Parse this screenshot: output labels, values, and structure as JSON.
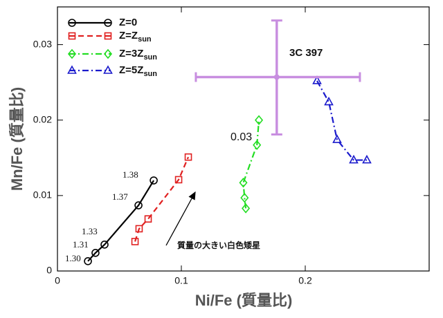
{
  "chart_data": {
    "type": "line",
    "x_label": "Ni/Fe (質量比)",
    "y_label": "Mn/Fe (質量比)",
    "xlim": [
      0,
      0.3
    ],
    "ylim": [
      0,
      0.035
    ],
    "xticks": [
      0,
      0.1,
      0.2
    ],
    "yticks": [
      0,
      0.01,
      0.02,
      0.03
    ],
    "legend_position": "upper left",
    "series": [
      {
        "name": "Z=0",
        "color": "#000000",
        "marker": "circle",
        "linestyle": "solid",
        "x": [
          0.0246,
          0.0307,
          0.038,
          0.0654,
          0.0777
        ],
        "values": [
          0.0013,
          0.0024,
          0.0035,
          0.0087,
          0.012
        ]
      },
      {
        "name": "Z=Zsun",
        "color": "#e02020",
        "marker": "square",
        "linestyle": "dashed",
        "x": [
          0.0626,
          0.0659,
          0.0732,
          0.0978,
          0.1056
        ],
        "values": [
          0.0039,
          0.0056,
          0.0069,
          0.0121,
          0.0151
        ]
      },
      {
        "name": "Z=3Zsun",
        "color": "#22dd22",
        "marker": "diamond",
        "linestyle": "dashdot",
        "x": [
          0.152,
          0.151,
          0.15,
          0.161,
          0.1626
        ],
        "values": [
          0.0083,
          0.0097,
          0.0117,
          0.0167,
          0.02
        ]
      },
      {
        "name": "Z=5Zsun",
        "color": "#1a1acc",
        "marker": "triangle",
        "linestyle": "dashdot",
        "x": [
          0.2095,
          0.219,
          0.2257,
          0.2391,
          0.2497
        ],
        "values": [
          0.0252,
          0.0224,
          0.0174,
          0.0147,
          0.0147
        ]
      }
    ],
    "observation": {
      "name": "3C 397",
      "color": "#c88ee0",
      "x": 0.177,
      "y": 0.0257,
      "x_range": [
        0.1117,
        0.2441
      ],
      "y_range": [
        0.0181,
        0.0332
      ]
    },
    "annotations": [
      "1.30",
      "1.31",
      "1.33",
      "1.37",
      "1.38",
      "0.03",
      "質量の大きい白色矮星"
    ]
  }
}
